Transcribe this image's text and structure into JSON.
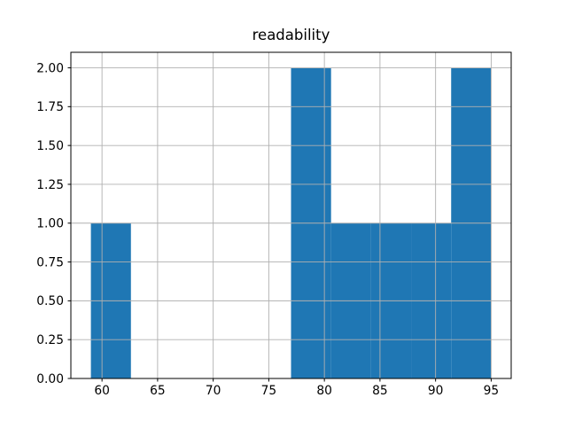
{
  "figure": {
    "background": "#ffffff"
  },
  "chart_data": {
    "type": "bar",
    "subtype": "histogram",
    "title": "readability",
    "xlabel": "",
    "ylabel": "",
    "bin_edges": [
      59.0,
      62.6,
      66.2,
      69.8,
      73.4,
      77.0,
      80.6,
      84.2,
      87.8,
      91.4,
      95.0
    ],
    "counts": [
      1,
      0,
      0,
      0,
      0,
      2,
      1,
      1,
      1,
      2
    ],
    "x_tick_values": [
      60,
      65,
      70,
      75,
      80,
      85,
      90,
      95
    ],
    "x_tick_labels": [
      "60",
      "65",
      "70",
      "75",
      "80",
      "85",
      "90",
      "95"
    ],
    "y_tick_values": [
      0,
      0.25,
      0.5,
      0.75,
      1.0,
      1.25,
      1.5,
      1.75,
      2.0
    ],
    "y_tick_labels": [
      "0.00",
      "0.25",
      "0.50",
      "0.75",
      "1.00",
      "1.25",
      "1.50",
      "1.75",
      "2.00"
    ],
    "xlim": [
      57.2,
      96.8
    ],
    "ylim": [
      0,
      2.1
    ],
    "grid": true,
    "legend": null,
    "bar_color": "#1f77b4",
    "grid_color": "#b0b0b0",
    "spine_color": "#000000",
    "text_color": "#000000"
  }
}
